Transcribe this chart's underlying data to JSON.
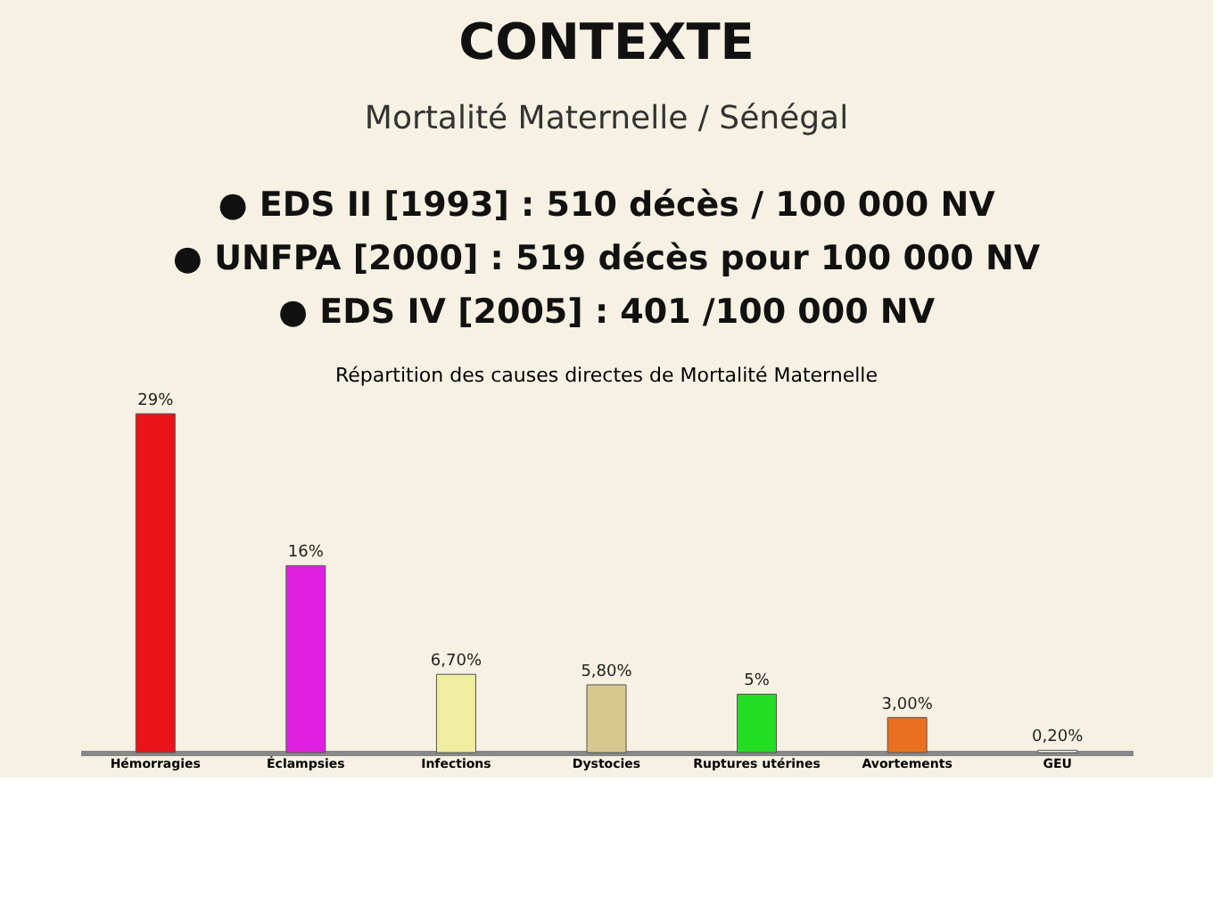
{
  "chart_data": {
    "type": "bar",
    "title": "CONTEXTE",
    "subtitle": "Mortalité Maternelle / Sénégal",
    "annotations": [
      "● EDS II [1993] : 510 décès / 100 000 NV",
      "● UNFPA [2000] : 519 décès pour 100 000 NV",
      "● EDS IV [2005] : 401 /100 000 NV",
      "Répartition des causes directes de Mortalité Maternelle"
    ],
    "categories": [
      "Hémorragies",
      "Éclampsies",
      "Infections",
      "Dystocies",
      "Ruptures utérines",
      "Avortements",
      "GEU"
    ],
    "values": [
      29,
      16,
      6.7,
      5.8,
      5,
      3,
      0.2
    ],
    "value_labels": [
      "29%",
      "16%",
      "6,70%",
      "5,80%",
      "5%",
      "3,00%",
      "0,20%"
    ],
    "colors": [
      "#e8141a",
      "#e020e0",
      "#f0eca0",
      "#d8c890",
      "#22dd22",
      "#e87020",
      "#f4f4f0"
    ],
    "tick_labels": "x",
    "grid": false,
    "legend": false
  }
}
